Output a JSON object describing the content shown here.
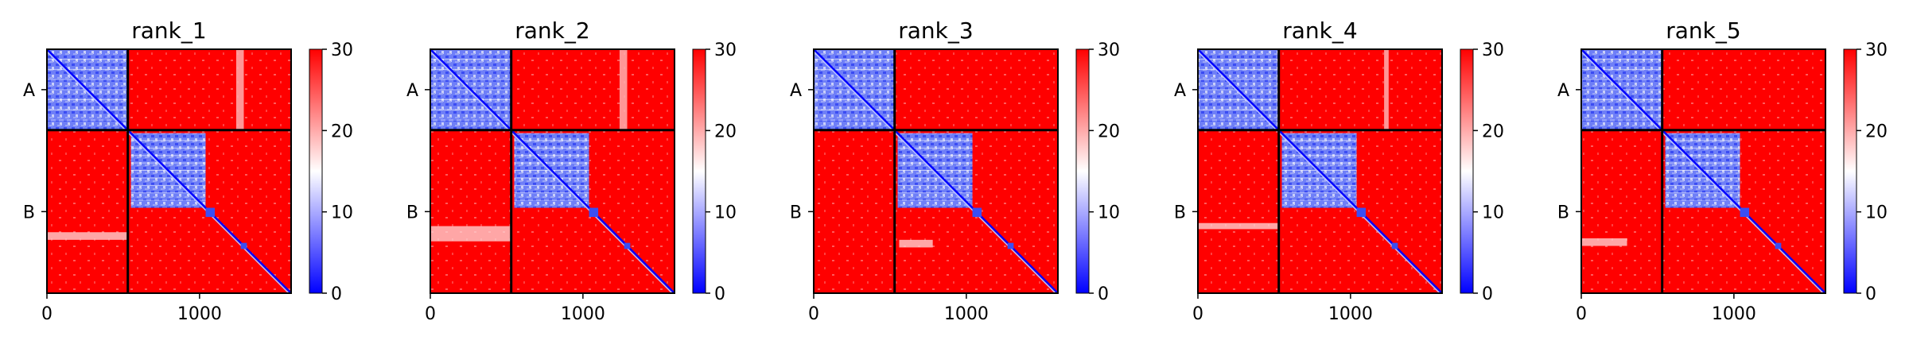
{
  "chart_data": {
    "type": "heatmap",
    "colorbar": {
      "min": 0,
      "max": 30,
      "ticks": [
        0,
        10,
        20,
        30
      ],
      "colors": [
        "#0000ff",
        "#ffffff",
        "#ff0000"
      ]
    },
    "x_ticks": [
      0,
      1000
    ],
    "x_range": [
      0,
      1600
    ],
    "y_range": [
      1600,
      0
    ],
    "chain_labels": [
      "A",
      "B"
    ],
    "chain_boundary": 530,
    "grid_lines": true,
    "panels": [
      {
        "title": "rank_1",
        "bands": [
          {
            "x0": 1240,
            "x1": 1290,
            "y0": 0,
            "y1": 530
          }
        ],
        "low_regions": [
          {
            "x0": 0,
            "x1": 530,
            "y0": 1200,
            "y1": 1250
          }
        ]
      },
      {
        "title": "rank_2",
        "bands": [
          {
            "x0": 1240,
            "x1": 1290,
            "y0": 0,
            "y1": 530
          }
        ],
        "low_regions": [
          {
            "x0": 0,
            "x1": 530,
            "y0": 1160,
            "y1": 1260
          }
        ]
      },
      {
        "title": "rank_3",
        "bands": [],
        "low_regions": [
          {
            "x0": 560,
            "x1": 780,
            "y0": 1250,
            "y1": 1300
          }
        ]
      },
      {
        "title": "rank_4",
        "bands": [
          {
            "x0": 1220,
            "x1": 1250,
            "y0": 0,
            "y1": 530
          }
        ],
        "low_regions": [
          {
            "x0": 0,
            "x1": 530,
            "y0": 1140,
            "y1": 1180
          }
        ]
      },
      {
        "title": "rank_5",
        "bands": [],
        "low_regions": [
          {
            "x0": 0,
            "x1": 300,
            "y0": 1240,
            "y1": 1290
          }
        ]
      }
    ]
  }
}
